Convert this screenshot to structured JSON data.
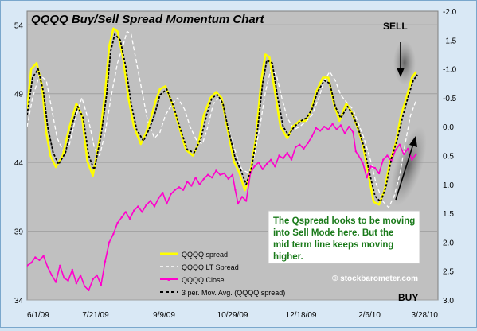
{
  "colors": {
    "plot_bg": "#c0c0c0",
    "spread": "#ffff00",
    "lt_spread": "#ffffff",
    "close": "#ff00cc",
    "mov_avg": "#000000",
    "title": "#000000",
    "annotation_bg": "#ffffff",
    "annotation_text": "#1a7a1a"
  },
  "chart_data": {
    "type": "line",
    "title": "QQQQ Buy/Sell Spread Momentum Chart",
    "x_tick_labels": [
      "6/1/09",
      "7/21/09",
      "9/9/09",
      "10/29/09",
      "12/18/09",
      "2/6/10",
      "3/28/10"
    ],
    "x_range_days": [
      0,
      300
    ],
    "left_axis": {
      "ticks": [
        54,
        49,
        44,
        39,
        34
      ],
      "range": [
        34,
        55
      ]
    },
    "right_axis": {
      "ticks": [
        "-2.0",
        "-1.5",
        "-1.0",
        "-0.5",
        "0.0",
        "0.5",
        "1.0",
        "1.5",
        "2.0",
        "2.5",
        "3.0"
      ],
      "range": [
        -2.0,
        3.0
      ]
    },
    "grid": "horizontal",
    "legend_position": "bottom-center",
    "series": [
      {
        "name": "QQQQ spread",
        "axis": "right",
        "color": "#ffff00",
        "points": [
          [
            0,
            -0.3
          ],
          [
            3,
            -1.0
          ],
          [
            7,
            -1.1
          ],
          [
            11,
            -0.7
          ],
          [
            14,
            0.1
          ],
          [
            17,
            0.5
          ],
          [
            21,
            0.7
          ],
          [
            26,
            0.5
          ],
          [
            31,
            0.0
          ],
          [
            36,
            -0.4
          ],
          [
            40,
            -0.2
          ],
          [
            44,
            0.6
          ],
          [
            48,
            0.85
          ],
          [
            53,
            0.2
          ],
          [
            57,
            -0.6
          ],
          [
            60,
            -1.4
          ],
          [
            63,
            -1.7
          ],
          [
            66,
            -1.65
          ],
          [
            70,
            -1.2
          ],
          [
            74,
            -0.5
          ],
          [
            78,
            0.0
          ],
          [
            83,
            0.3
          ],
          [
            87,
            0.1
          ],
          [
            91,
            -0.2
          ],
          [
            94,
            -0.45
          ],
          [
            97,
            -0.65
          ],
          [
            101,
            -0.7
          ],
          [
            106,
            -0.4
          ],
          [
            111,
            0.0
          ],
          [
            116,
            0.4
          ],
          [
            121,
            0.5
          ],
          [
            125,
            0.3
          ],
          [
            129,
            -0.2
          ],
          [
            134,
            -0.5
          ],
          [
            138,
            -0.6
          ],
          [
            142,
            -0.5
          ],
          [
            146,
            0.0
          ],
          [
            151,
            0.6
          ],
          [
            155,
            0.8
          ],
          [
            159,
            1.1
          ],
          [
            163,
            0.8
          ],
          [
            167,
            0.2
          ],
          [
            171,
            -0.8
          ],
          [
            174,
            -1.25
          ],
          [
            177,
            -1.2
          ],
          [
            181,
            -0.6
          ],
          [
            185,
            0.0
          ],
          [
            190,
            0.2
          ],
          [
            194,
            0.0
          ],
          [
            199,
            -0.1
          ],
          [
            203,
            -0.1
          ],
          [
            207,
            -0.25
          ],
          [
            211,
            -0.6
          ],
          [
            216,
            -0.85
          ],
          [
            220,
            -0.85
          ],
          [
            224,
            -0.4
          ],
          [
            228,
            -0.1
          ],
          [
            233,
            -0.4
          ],
          [
            237,
            -0.25
          ],
          [
            241,
            0.0
          ],
          [
            245,
            0.3
          ],
          [
            249,
            0.8
          ],
          [
            253,
            1.3
          ],
          [
            257,
            1.35
          ],
          [
            261,
            1.1
          ],
          [
            265,
            0.6
          ],
          [
            269,
            0.3
          ],
          [
            273,
            -0.2
          ],
          [
            277,
            -0.5
          ],
          [
            281,
            -0.85
          ],
          [
            284,
            -0.95
          ]
        ]
      },
      {
        "name": "QQQQ LT Spread",
        "axis": "right",
        "color": "#ffffff",
        "points": [
          [
            0,
            0.0
          ],
          [
            4,
            -0.5
          ],
          [
            9,
            -0.9
          ],
          [
            14,
            -0.8
          ],
          [
            18,
            -0.3
          ],
          [
            22,
            0.2
          ],
          [
            27,
            0.45
          ],
          [
            31,
            0.3
          ],
          [
            36,
            -0.2
          ],
          [
            40,
            -0.5
          ],
          [
            45,
            -0.1
          ],
          [
            49,
            0.35
          ],
          [
            53,
            0.5
          ],
          [
            57,
            0.1
          ],
          [
            62,
            -0.6
          ],
          [
            66,
            -1.1
          ],
          [
            70,
            -1.4
          ],
          [
            73,
            -1.65
          ],
          [
            76,
            -1.6
          ],
          [
            80,
            -1.1
          ],
          [
            84,
            -0.6
          ],
          [
            88,
            -0.1
          ],
          [
            93,
            0.2
          ],
          [
            97,
            0.1
          ],
          [
            101,
            -0.2
          ],
          [
            106,
            -0.4
          ],
          [
            110,
            -0.5
          ],
          [
            115,
            -0.3
          ],
          [
            119,
            0.0
          ],
          [
            124,
            0.25
          ],
          [
            128,
            0.3
          ],
          [
            132,
            0.0
          ],
          [
            136,
            -0.4
          ],
          [
            140,
            -0.5
          ],
          [
            144,
            -0.3
          ],
          [
            149,
            0.2
          ],
          [
            153,
            0.5
          ],
          [
            157,
            0.75
          ],
          [
            162,
            0.8
          ],
          [
            166,
            0.5
          ],
          [
            170,
            0.0
          ],
          [
            174,
            -0.6
          ],
          [
            178,
            -1.0
          ],
          [
            182,
            -0.9
          ],
          [
            186,
            -0.5
          ],
          [
            190,
            -0.15
          ],
          [
            195,
            0.05
          ],
          [
            199,
            0.0
          ],
          [
            204,
            -0.1
          ],
          [
            208,
            -0.2
          ],
          [
            213,
            -0.5
          ],
          [
            217,
            -0.8
          ],
          [
            221,
            -0.95
          ],
          [
            225,
            -0.8
          ],
          [
            229,
            -0.55
          ],
          [
            234,
            -0.4
          ],
          [
            238,
            -0.3
          ],
          [
            242,
            -0.05
          ],
          [
            246,
            0.2
          ],
          [
            251,
            0.6
          ],
          [
            255,
            1.0
          ],
          [
            260,
            1.3
          ],
          [
            264,
            1.4
          ],
          [
            268,
            1.2
          ],
          [
            272,
            0.85
          ],
          [
            276,
            0.3
          ],
          [
            280,
            -0.2
          ],
          [
            284,
            -0.45
          ]
        ]
      },
      {
        "name": "QQQQ Close",
        "axis": "left",
        "color": "#ff00cc",
        "points": [
          [
            0,
            36.5
          ],
          [
            3,
            36.7
          ],
          [
            6,
            37.1
          ],
          [
            9,
            36.9
          ],
          [
            12,
            37.2
          ],
          [
            15,
            36.4
          ],
          [
            18,
            35.8
          ],
          [
            21,
            35.3
          ],
          [
            24,
            36.5
          ],
          [
            27,
            35.6
          ],
          [
            30,
            35.4
          ],
          [
            33,
            36.2
          ],
          [
            36,
            35.2
          ],
          [
            39,
            35.8
          ],
          [
            42,
            35.0
          ],
          [
            45,
            34.7
          ],
          [
            48,
            35.5
          ],
          [
            51,
            35.8
          ],
          [
            54,
            35.1
          ],
          [
            57,
            36.8
          ],
          [
            60,
            38.2
          ],
          [
            63,
            38.8
          ],
          [
            66,
            39.6
          ],
          [
            69,
            40.0
          ],
          [
            72,
            40.4
          ],
          [
            75,
            39.9
          ],
          [
            78,
            40.5
          ],
          [
            81,
            40.8
          ],
          [
            84,
            40.4
          ],
          [
            87,
            40.9
          ],
          [
            90,
            41.2
          ],
          [
            93,
            40.8
          ],
          [
            96,
            41.4
          ],
          [
            99,
            41.8
          ],
          [
            102,
            41.0
          ],
          [
            105,
            41.7
          ],
          [
            108,
            42.0
          ],
          [
            111,
            42.2
          ],
          [
            114,
            42.0
          ],
          [
            117,
            42.6
          ],
          [
            120,
            42.3
          ],
          [
            123,
            42.9
          ],
          [
            126,
            42.4
          ],
          [
            129,
            42.8
          ],
          [
            132,
            43.1
          ],
          [
            135,
            42.9
          ],
          [
            138,
            43.4
          ],
          [
            141,
            43.1
          ],
          [
            144,
            43.2
          ],
          [
            147,
            42.8
          ],
          [
            150,
            43.1
          ],
          [
            152,
            42.0
          ],
          [
            154,
            41.0
          ],
          [
            157,
            41.5
          ],
          [
            160,
            41.2
          ],
          [
            163,
            43.2
          ],
          [
            166,
            43.7
          ],
          [
            169,
            44.0
          ],
          [
            172,
            43.5
          ],
          [
            175,
            43.9
          ],
          [
            178,
            44.2
          ],
          [
            181,
            43.7
          ],
          [
            184,
            44.5
          ],
          [
            187,
            44.3
          ],
          [
            190,
            44.7
          ],
          [
            193,
            44.2
          ],
          [
            196,
            45.1
          ],
          [
            199,
            45.3
          ],
          [
            202,
            45.0
          ],
          [
            205,
            45.4
          ],
          [
            208,
            45.9
          ],
          [
            211,
            46.5
          ],
          [
            214,
            46.3
          ],
          [
            217,
            46.6
          ],
          [
            220,
            46.4
          ],
          [
            223,
            46.8
          ],
          [
            226,
            46.4
          ],
          [
            229,
            46.7
          ],
          [
            232,
            46.1
          ],
          [
            235,
            46.6
          ],
          [
            238,
            46.2
          ],
          [
            240,
            44.8
          ],
          [
            242,
            44.5
          ],
          [
            245,
            44.0
          ],
          [
            248,
            42.9
          ],
          [
            251,
            43.7
          ],
          [
            254,
            43.6
          ],
          [
            257,
            43.2
          ],
          [
            260,
            44.2
          ],
          [
            263,
            44.5
          ],
          [
            266,
            44.1
          ],
          [
            269,
            44.9
          ],
          [
            272,
            45.3
          ],
          [
            275,
            44.6
          ],
          [
            278,
            45.0
          ],
          [
            281,
            44.2
          ],
          [
            284,
            44.6
          ]
        ]
      },
      {
        "name": "3 per. Mov. Avg. (QQQQ spread)",
        "axis": "right",
        "color": "#000000",
        "dashed": true,
        "points": [
          [
            0,
            -0.2
          ],
          [
            4,
            -0.85
          ],
          [
            8,
            -1.0
          ],
          [
            12,
            -0.6
          ],
          [
            15,
            0.0
          ],
          [
            19,
            0.45
          ],
          [
            23,
            0.65
          ],
          [
            28,
            0.45
          ],
          [
            33,
            -0.05
          ],
          [
            37,
            -0.35
          ],
          [
            41,
            -0.15
          ],
          [
            45,
            0.5
          ],
          [
            49,
            0.75
          ],
          [
            54,
            0.15
          ],
          [
            58,
            -0.55
          ],
          [
            61,
            -1.3
          ],
          [
            64,
            -1.6
          ],
          [
            68,
            -1.5
          ],
          [
            72,
            -1.05
          ],
          [
            76,
            -0.4
          ],
          [
            80,
            0.05
          ],
          [
            85,
            0.25
          ],
          [
            89,
            0.05
          ],
          [
            93,
            -0.2
          ],
          [
            97,
            -0.55
          ],
          [
            102,
            -0.65
          ],
          [
            107,
            -0.35
          ],
          [
            112,
            0.05
          ],
          [
            117,
            0.4
          ],
          [
            122,
            0.45
          ],
          [
            127,
            0.2
          ],
          [
            131,
            -0.2
          ],
          [
            135,
            -0.5
          ],
          [
            139,
            -0.55
          ],
          [
            143,
            -0.4
          ],
          [
            147,
            0.05
          ],
          [
            152,
            0.55
          ],
          [
            156,
            0.75
          ],
          [
            160,
            1.0
          ],
          [
            164,
            0.7
          ],
          [
            168,
            0.1
          ],
          [
            172,
            -0.75
          ],
          [
            175,
            -1.15
          ],
          [
            179,
            -1.1
          ],
          [
            183,
            -0.5
          ],
          [
            187,
            0.0
          ],
          [
            191,
            0.15
          ],
          [
            195,
            0.0
          ],
          [
            200,
            -0.1
          ],
          [
            204,
            -0.15
          ],
          [
            208,
            -0.3
          ],
          [
            212,
            -0.6
          ],
          [
            217,
            -0.8
          ],
          [
            221,
            -0.75
          ],
          [
            225,
            -0.35
          ],
          [
            229,
            -0.15
          ],
          [
            234,
            -0.35
          ],
          [
            238,
            -0.2
          ],
          [
            242,
            0.05
          ],
          [
            246,
            0.35
          ],
          [
            250,
            0.8
          ],
          [
            254,
            1.2
          ],
          [
            258,
            1.3
          ],
          [
            262,
            1.05
          ],
          [
            266,
            0.55
          ],
          [
            270,
            0.25
          ],
          [
            274,
            -0.15
          ],
          [
            278,
            -0.5
          ],
          [
            282,
            -0.8
          ],
          [
            285,
            -0.9
          ]
        ]
      }
    ],
    "annotations": {
      "sell": "SELL",
      "buy": "BUY",
      "note": "The Qspread looks to be moving into Sell Mode here.  But the mid term line keeps moving higher.",
      "watermark": "© stockbarometer.com"
    }
  }
}
